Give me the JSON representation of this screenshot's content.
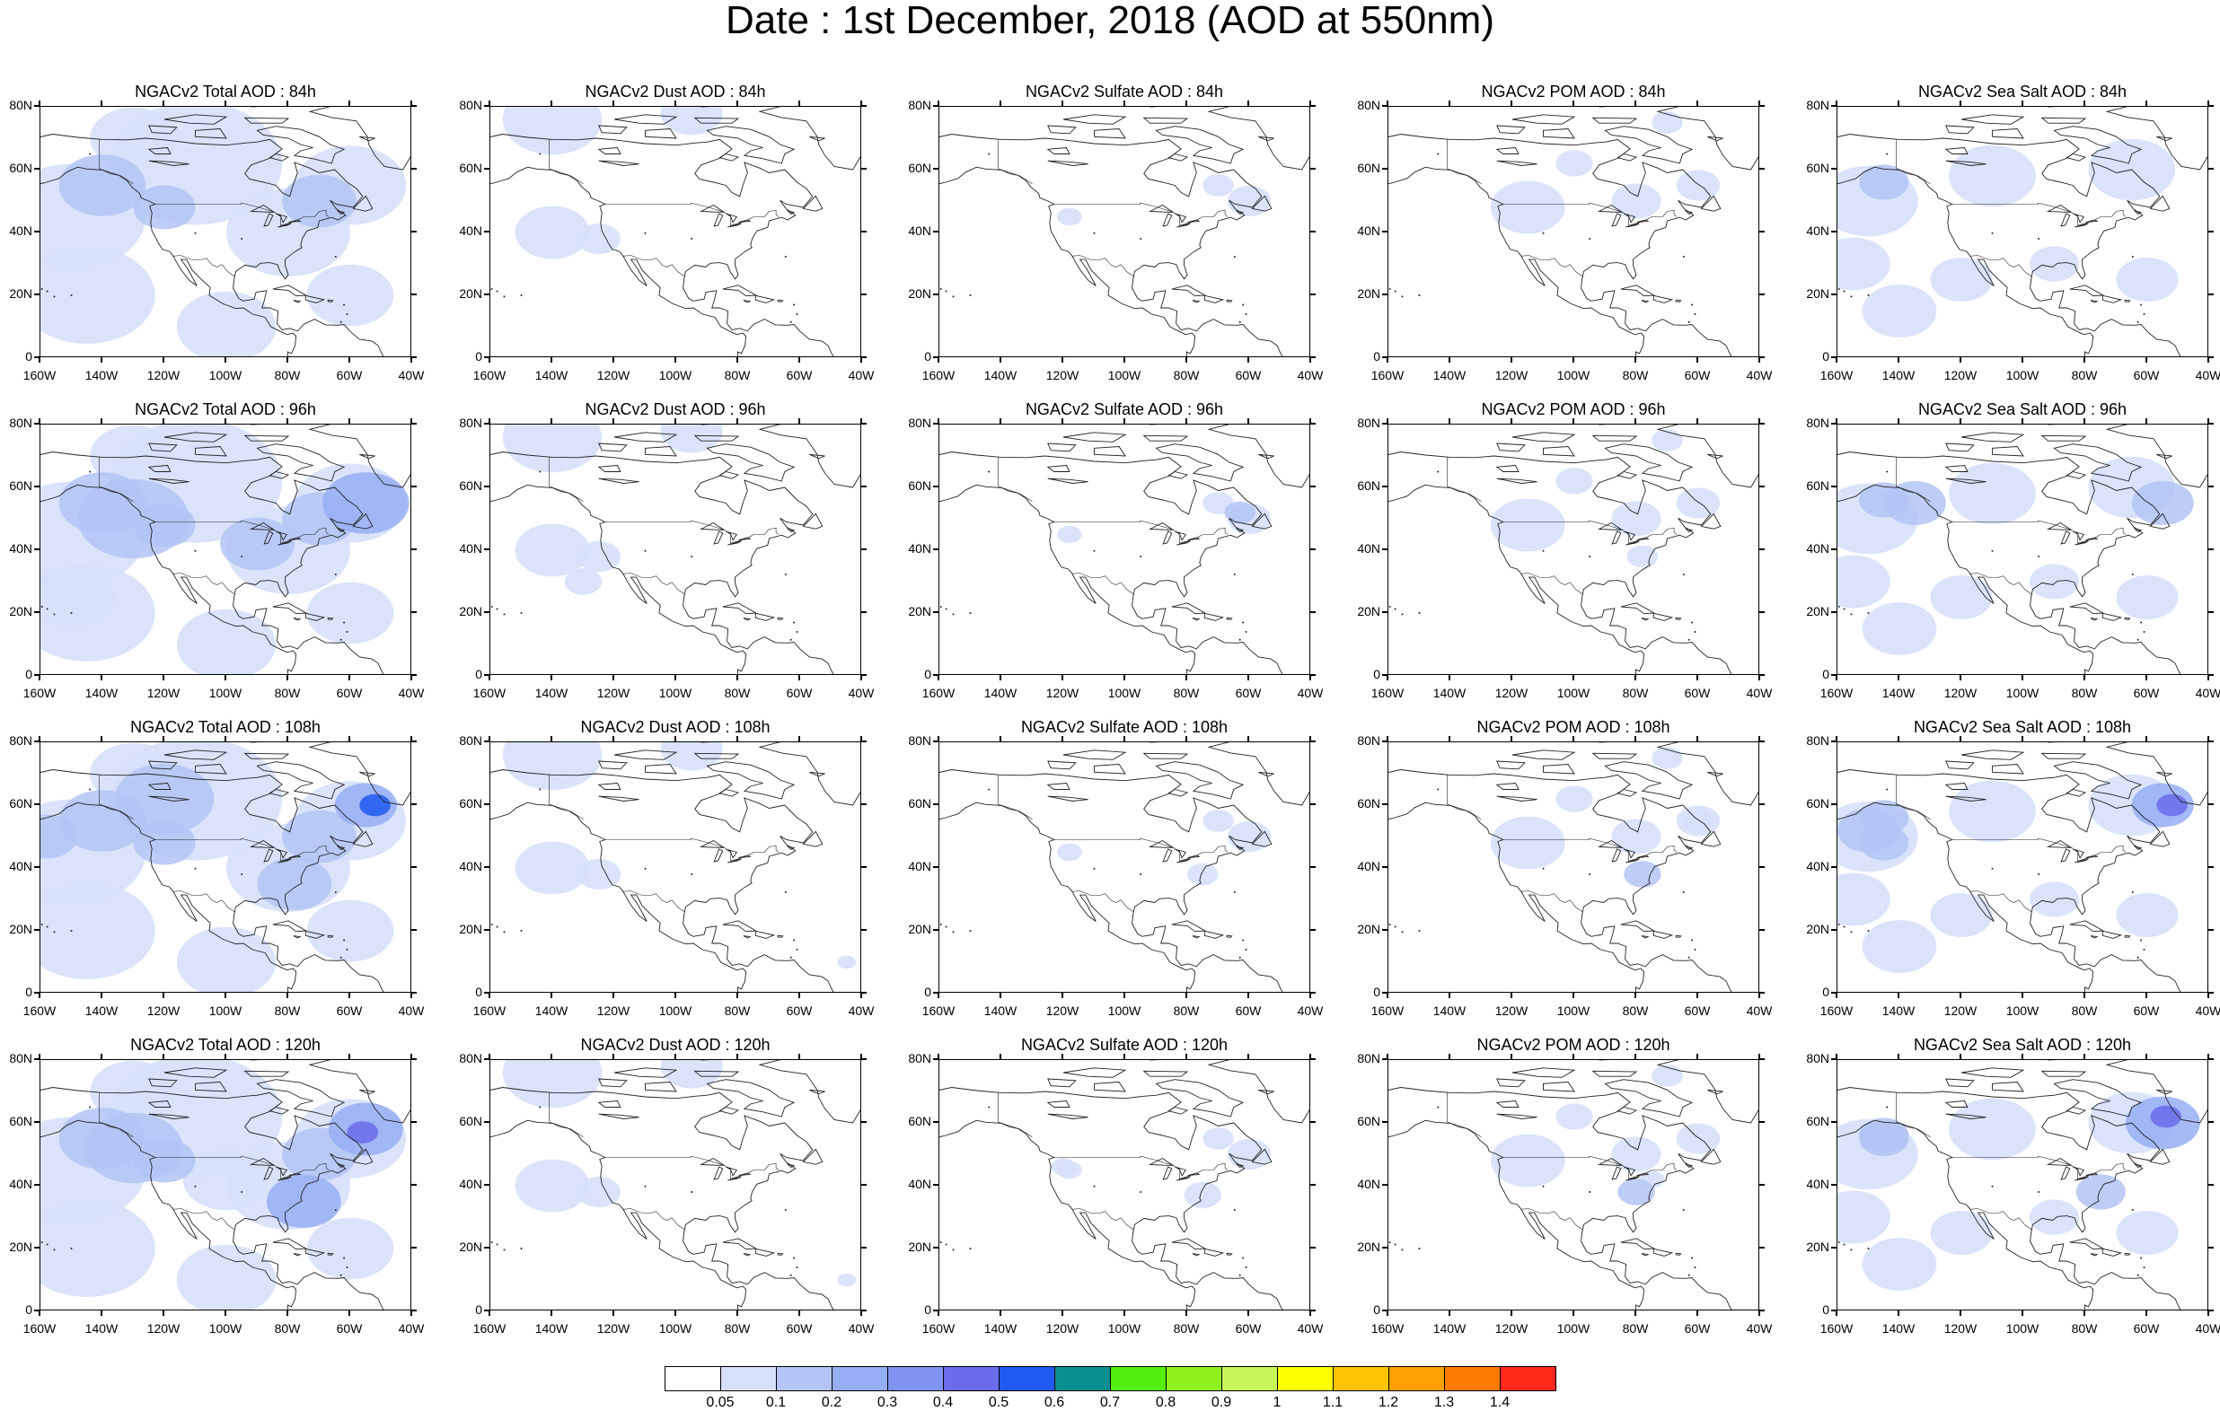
{
  "title": "Date : 1st December, 2018 (AOD at 550nm)",
  "panels": [
    [
      "NGACv2 Total AOD : 84h",
      "NGACv2 Dust AOD : 84h",
      "NGACv2 Sulfate AOD : 84h",
      "NGACv2 POM AOD : 84h",
      "NGACv2 Sea Salt AOD : 84h"
    ],
    [
      "NGACv2 Total AOD : 96h",
      "NGACv2 Dust AOD : 96h",
      "NGACv2 Sulfate AOD : 96h",
      "NGACv2 POM AOD : 96h",
      "NGACv2 Sea Salt AOD : 96h"
    ],
    [
      "NGACv2 Total AOD : 108h",
      "NGACv2 Dust AOD : 108h",
      "NGACv2 Sulfate AOD : 108h",
      "NGACv2 POM AOD : 108h",
      "NGACv2 Sea Salt AOD : 108h"
    ],
    [
      "NGACv2 Total AOD : 120h",
      "NGACv2 Dust AOD : 120h",
      "NGACv2 Sulfate AOD : 120h",
      "NGACv2 POM AOD : 120h",
      "NGACv2 Sea Salt  AOD : 120h"
    ]
  ],
  "lat_ticks": [
    "80N",
    "60N",
    "40N",
    "20N",
    "0"
  ],
  "lon_ticks": [
    "160W",
    "140W",
    "120W",
    "100W",
    "80W",
    "60W",
    "40W"
  ],
  "colorbar": {
    "labels": [
      "0.05",
      "0.1",
      "0.2",
      "0.3",
      "0.4",
      "0.5",
      "0.6",
      "0.7",
      "0.8",
      "0.9",
      "1",
      "1.1",
      "1.2",
      "1.3",
      "1.4"
    ],
    "colors": [
      "#ffffff",
      "#d6e0fa",
      "#b3c4f5",
      "#96aef3",
      "#7f93f0",
      "#6a6cec",
      "#1f5bf0",
      "#088f8f",
      "#55ee11",
      "#8ef21f",
      "#c8f55a",
      "#ffff00",
      "#ffc400",
      "#ffa000",
      "#ff7a00",
      "#ff2a1a"
    ]
  },
  "shade_colors": {
    "light": "#d6e0fa",
    "medium": "#b3c4f5",
    "strong": "#96aef3",
    "intense": "#6a6cec",
    "peak": "#1f5bf0"
  }
}
